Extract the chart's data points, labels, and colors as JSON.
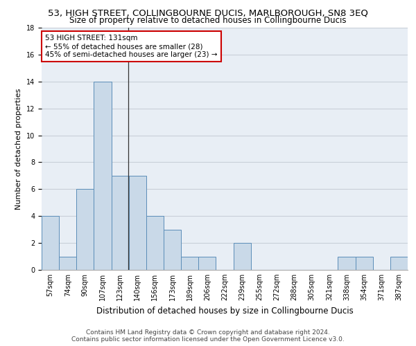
{
  "title": "53, HIGH STREET, COLLINGBOURNE DUCIS, MARLBOROUGH, SN8 3EQ",
  "subtitle": "Size of property relative to detached houses in Collingbourne Ducis",
  "xlabel": "Distribution of detached houses by size in Collingbourne Ducis",
  "ylabel": "Number of detached properties",
  "footer_line1": "Contains HM Land Registry data © Crown copyright and database right 2024.",
  "footer_line2": "Contains public sector information licensed under the Open Government Licence v3.0.",
  "bins": [
    "57sqm",
    "74sqm",
    "90sqm",
    "107sqm",
    "123sqm",
    "140sqm",
    "156sqm",
    "173sqm",
    "189sqm",
    "206sqm",
    "222sqm",
    "239sqm",
    "255sqm",
    "272sqm",
    "288sqm",
    "305sqm",
    "321sqm",
    "338sqm",
    "354sqm",
    "371sqm",
    "387sqm"
  ],
  "values": [
    4,
    1,
    6,
    14,
    7,
    7,
    4,
    3,
    1,
    1,
    0,
    2,
    0,
    0,
    0,
    0,
    0,
    1,
    1,
    0,
    1
  ],
  "bar_color": "#c9d9e8",
  "bar_edge_color": "#5b8db8",
  "annotation_line1": "53 HIGH STREET: 131sqm",
  "annotation_line2": "← 55% of detached houses are smaller (28)",
  "annotation_line3": "45% of semi-detached houses are larger (23) →",
  "annotation_box_color": "#ffffff",
  "annotation_box_edgecolor": "#cc0000",
  "ylim": [
    0,
    18
  ],
  "yticks": [
    0,
    2,
    4,
    6,
    8,
    10,
    12,
    14,
    16,
    18
  ],
  "grid_color": "#c8cfd8",
  "bg_color": "#e8eef5",
  "title_fontsize": 9.5,
  "subtitle_fontsize": 8.5,
  "xlabel_fontsize": 8.5,
  "ylabel_fontsize": 8,
  "tick_fontsize": 7,
  "annotation_fontsize": 7.5,
  "footer_fontsize": 6.5
}
